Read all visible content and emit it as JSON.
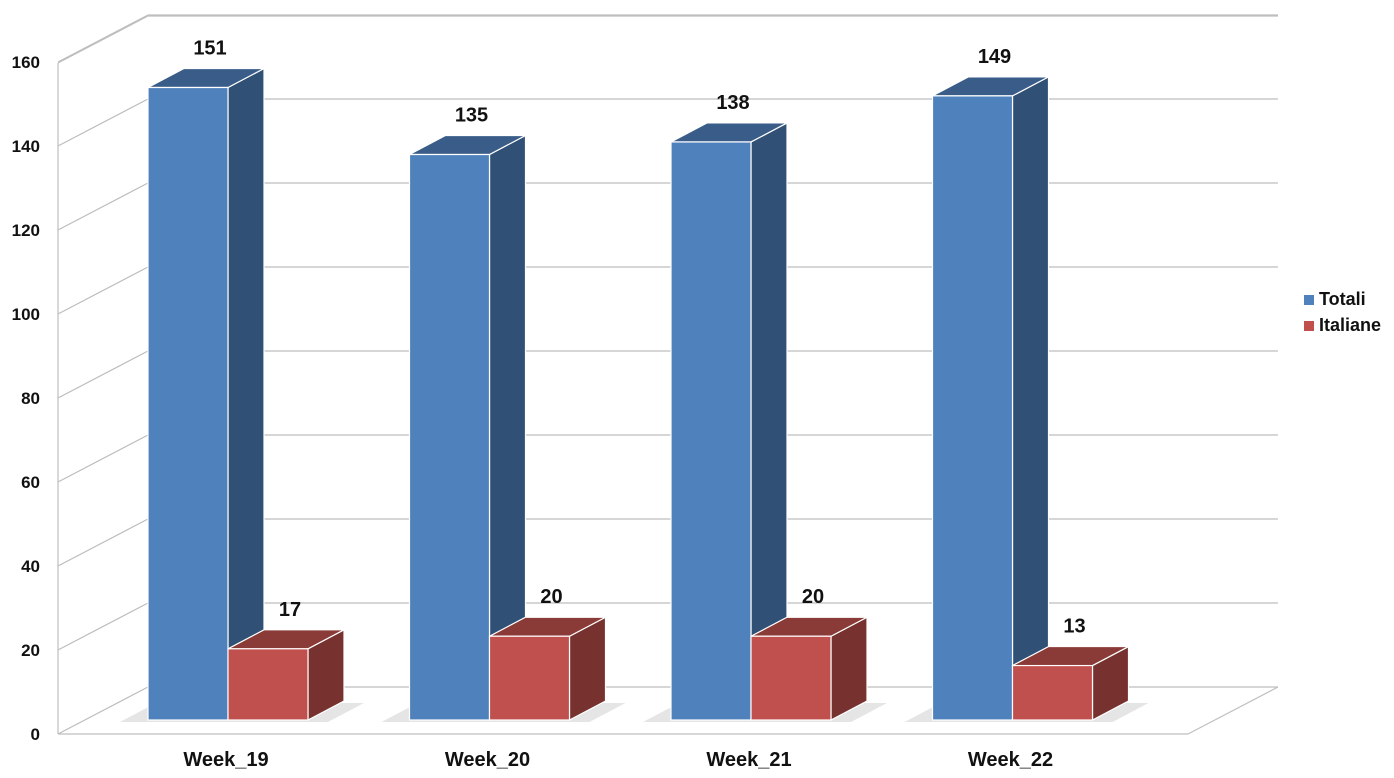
{
  "chart_data": {
    "type": "bar",
    "categories": [
      "Week_19",
      "Week_20",
      "Week_21",
      "Week_22"
    ],
    "series": [
      {
        "name": "Totali",
        "values": [
          151,
          135,
          138,
          149
        ],
        "color": "#4f81bd"
      },
      {
        "name": "Italiane",
        "values": [
          17,
          20,
          20,
          13
        ],
        "color": "#c0504d"
      }
    ],
    "yticks": [
      "0",
      "20",
      "40",
      "60",
      "80",
      "100",
      "120",
      "140",
      "160"
    ],
    "ylim": [
      0,
      160
    ],
    "grid": true,
    "legend_position": "right",
    "title": "",
    "xlabel": "",
    "ylabel": ""
  }
}
